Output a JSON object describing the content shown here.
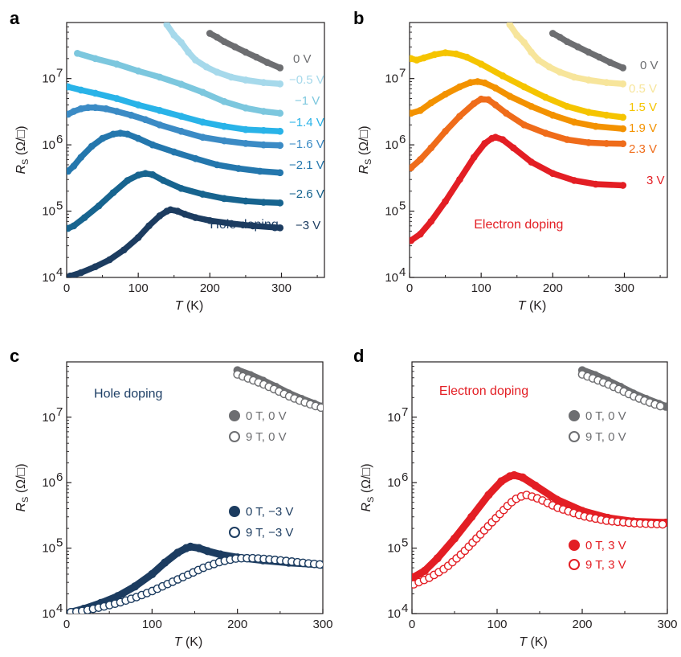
{
  "figure": {
    "panels": [
      "a",
      "b",
      "c",
      "d"
    ]
  },
  "chart_data": [
    {
      "panel": "a",
      "type": "scatter",
      "xlabel_italic": "T",
      "xlabel_unit": " (K)",
      "ylabel_main": "R",
      "ylabel_sub": "S",
      "ylabel_unit": " (Ω/□)",
      "xlim": [
        0,
        360
      ],
      "ylim": [
        10000,
        70000000
      ],
      "log_y": true,
      "xticks": [
        0,
        100,
        200,
        300
      ],
      "yticks": [
        {
          "v": 10000,
          "t": "10"
        },
        {
          "v": 100000,
          "t": "10"
        },
        {
          "v": 1000000,
          "t": "10"
        },
        {
          "v": 10000000,
          "t": "10"
        }
      ],
      "ytick_exps": [
        "4",
        "5",
        "6",
        "7"
      ],
      "annotation": {
        "text": "Hole doping",
        "color": "#1e3f66",
        "x": 200,
        "y": 55000
      },
      "series": [
        {
          "name": "0 V",
          "color": "#6d6e71",
          "x": [
            200,
            210,
            220,
            235,
            250,
            265,
            280,
            298
          ],
          "y": [
            48000000,
            42000000,
            36000000,
            30000000,
            25000000,
            21000000,
            17500000,
            14500000
          ]
        },
        {
          "name": "−0.5 V",
          "color": "#a6d9eb",
          "x": [
            140,
            150,
            160,
            170,
            180,
            195,
            210,
            230,
            250,
            275,
            298
          ],
          "y": [
            65000000,
            45000000,
            35000000,
            25000000,
            19000000,
            15000000,
            12500000,
            10500000,
            9500000,
            8700000,
            8300000
          ]
        },
        {
          "name": "−1 V",
          "color": "#7cc7de",
          "x": [
            15,
            40,
            70,
            100,
            130,
            160,
            190,
            220,
            250,
            275,
            298
          ],
          "y": [
            24000000,
            20000000,
            16500000,
            13000000,
            10500000,
            8200000,
            6200000,
            4500000,
            3600000,
            3200000,
            3000000
          ]
        },
        {
          "name": "−1.4 V",
          "color": "#29b3e8",
          "x": [
            2,
            20,
            40,
            70,
            100,
            130,
            160,
            190,
            220,
            250,
            275,
            298
          ],
          "y": [
            7500000,
            6700000,
            6000000,
            5000000,
            4000000,
            3300000,
            2700000,
            2200000,
            1900000,
            1700000,
            1650000,
            1600000
          ]
        },
        {
          "name": "−1.6 V",
          "color": "#3b8bc5",
          "x": [
            2,
            10,
            20,
            30,
            40,
            55,
            70,
            90,
            110,
            130,
            160,
            190,
            220,
            250,
            275,
            298
          ],
          "y": [
            2900000,
            3200000,
            3500000,
            3650000,
            3650000,
            3500000,
            3200000,
            2800000,
            2400000,
            2000000,
            1600000,
            1300000,
            1150000,
            1050000,
            1000000,
            980000
          ]
        },
        {
          "name": "−2.1 V",
          "color": "#2477ad",
          "x": [
            2,
            10,
            20,
            35,
            50,
            65,
            75,
            85,
            100,
            120,
            150,
            180,
            210,
            240,
            270,
            298
          ],
          "y": [
            400000,
            480000,
            650000,
            950000,
            1250000,
            1450000,
            1500000,
            1450000,
            1250000,
            1000000,
            780000,
            620000,
            500000,
            440000,
            400000,
            380000
          ]
        },
        {
          "name": "−2.6 V",
          "color": "#17648f",
          "x": [
            2,
            10,
            25,
            45,
            65,
            85,
            100,
            110,
            120,
            135,
            160,
            190,
            220,
            250,
            275,
            298
          ],
          "y": [
            55000,
            60000,
            80000,
            120000,
            190000,
            290000,
            350000,
            370000,
            355000,
            290000,
            220000,
            180000,
            155000,
            142000,
            136000,
            133000
          ]
        },
        {
          "name": "−3 V",
          "color": "#1c3c60",
          "x": [
            5,
            20,
            40,
            60,
            80,
            100,
            115,
            130,
            140,
            145,
            155,
            165,
            180,
            200,
            230,
            260,
            298
          ],
          "y": [
            10500,
            11800,
            14500,
            18500,
            26000,
            40000,
            60000,
            85000,
            100000,
            105000,
            100000,
            90000,
            80000,
            72000,
            65000,
            60000,
            56000
          ]
        }
      ]
    },
    {
      "panel": "b",
      "type": "scatter",
      "xlabel_italic": "T",
      "xlabel_unit": " (K)",
      "ylabel_main": "R",
      "ylabel_sub": "S",
      "ylabel_unit": " (Ω/□)",
      "xlim": [
        0,
        360
      ],
      "ylim": [
        10000,
        70000000
      ],
      "log_y": true,
      "xticks": [
        0,
        100,
        200,
        300
      ],
      "yticks": [
        {
          "v": 10000,
          "t": "10"
        },
        {
          "v": 100000,
          "t": "10"
        },
        {
          "v": 1000000,
          "t": "10"
        },
        {
          "v": 10000000,
          "t": "10"
        }
      ],
      "ytick_exps": [
        "4",
        "5",
        "6",
        "7"
      ],
      "annotation": {
        "text": "Electron doping",
        "color": "#e31e24",
        "x": 90,
        "y": 55000
      },
      "series": [
        {
          "name": "0 V",
          "color": "#6d6e71",
          "x": [
            200,
            210,
            220,
            235,
            250,
            265,
            280,
            298
          ],
          "y": [
            48000000,
            42000000,
            36000000,
            30000000,
            25000000,
            21000000,
            17500000,
            14500000
          ]
        },
        {
          "name": "0.5 V",
          "color": "#f7e59b",
          "x": [
            140,
            150,
            160,
            170,
            180,
            195,
            210,
            230,
            250,
            275,
            298
          ],
          "y": [
            65000000,
            45000000,
            35000000,
            25000000,
            19000000,
            15000000,
            12500000,
            10500000,
            9500000,
            8700000,
            8300000
          ]
        },
        {
          "name": "1.5 V",
          "color": "#f5c400",
          "x": [
            2,
            10,
            20,
            35,
            50,
            65,
            80,
            100,
            130,
            160,
            190,
            220,
            250,
            275,
            298
          ],
          "y": [
            20000000,
            19000000,
            20500000,
            23000000,
            24500000,
            23500000,
            21000000,
            16500000,
            11000000,
            7500000,
            5200000,
            3800000,
            3100000,
            2800000,
            2600000
          ]
        },
        {
          "name": "1.9 V",
          "color": "#f39200",
          "x": [
            2,
            15,
            30,
            50,
            70,
            85,
            95,
            105,
            120,
            140,
            170,
            200,
            230,
            260,
            298
          ],
          "y": [
            3000000,
            3300000,
            4300000,
            5800000,
            7500000,
            8700000,
            9000000,
            8600000,
            7200000,
            5400000,
            3800000,
            2800000,
            2200000,
            1900000,
            1750000
          ]
        },
        {
          "name": "2.3 V",
          "color": "#ef6c1a",
          "x": [
            2,
            15,
            30,
            50,
            70,
            90,
            100,
            110,
            120,
            135,
            160,
            190,
            220,
            250,
            275,
            298
          ],
          "y": [
            450000,
            600000,
            900000,
            1600000,
            2700000,
            4200000,
            4900000,
            4800000,
            4000000,
            3000000,
            2000000,
            1500000,
            1200000,
            1080000,
            1050000,
            1040000
          ]
        },
        {
          "name": "3 V",
          "color": "#e31e24",
          "x": [
            2,
            15,
            30,
            50,
            70,
            90,
            105,
            115,
            120,
            130,
            145,
            170,
            200,
            230,
            260,
            298
          ],
          "y": [
            36000,
            45000,
            70000,
            140000,
            300000,
            650000,
            1050000,
            1250000,
            1300000,
            1200000,
            900000,
            550000,
            370000,
            290000,
            255000,
            245000
          ]
        }
      ]
    },
    {
      "panel": "c",
      "type": "scatter",
      "xlabel_italic": "T",
      "xlabel_unit": " (K)",
      "ylabel_main": "R",
      "ylabel_sub": "S",
      "ylabel_unit": " (Ω/□)",
      "xlim": [
        0,
        300
      ],
      "ylim": [
        10000,
        70000000
      ],
      "log_y": true,
      "xticks": [
        0,
        100,
        200,
        300
      ],
      "yticks": [
        {
          "v": 10000,
          "t": "10"
        },
        {
          "v": 100000,
          "t": "10"
        },
        {
          "v": 1000000,
          "t": "10"
        },
        {
          "v": 10000000,
          "t": "10"
        }
      ],
      "ytick_exps": [
        "4",
        "5",
        "6",
        "7"
      ],
      "annotation": {
        "text": "Hole doping",
        "color": "#1e3f66",
        "x": 32,
        "y": 20000000
      },
      "series": [
        {
          "name": "0 T, 0 V",
          "color": "#6d6e71",
          "filled": true,
          "x": [
            200,
            215,
            230,
            245,
            260,
            275,
            290,
            298
          ],
          "y": [
            52000000,
            44000000,
            36000000,
            29000000,
            23000000,
            19000000,
            16000000,
            14500000
          ]
        },
        {
          "name": "9 T, 0 V",
          "color": "#6d6e71",
          "filled": false,
          "x": [
            200,
            215,
            230,
            245,
            260,
            275,
            290,
            298
          ],
          "y": [
            45000000,
            38000000,
            32000000,
            26000000,
            21000000,
            17500000,
            15000000,
            14000000
          ]
        },
        {
          "name": "0 T, −3 V",
          "color": "#1c3c60",
          "filled": true,
          "x": [
            5,
            20,
            40,
            60,
            80,
            100,
            115,
            130,
            140,
            145,
            155,
            165,
            180,
            200,
            230,
            260,
            298
          ],
          "y": [
            10500,
            11800,
            14500,
            18500,
            26000,
            40000,
            60000,
            85000,
            100000,
            105000,
            100000,
            90000,
            80000,
            72000,
            65000,
            60000,
            56000
          ]
        },
        {
          "name": "9 T, −3 V",
          "color": "#1c3c60",
          "filled": false,
          "x": [
            5,
            20,
            40,
            60,
            80,
            100,
            120,
            140,
            160,
            180,
            200,
            220,
            240,
            260,
            280,
            298
          ],
          "y": [
            10500,
            11000,
            12500,
            14500,
            17500,
            22000,
            29000,
            38000,
            50000,
            62000,
            70000,
            70000,
            67000,
            63000,
            59000,
            56000
          ]
        }
      ],
      "legend": [
        {
          "text": "0 T, 0 V",
          "color": "#6d6e71",
          "filled": true
        },
        {
          "text": "9 T, 0 V",
          "color": "#6d6e71",
          "filled": false
        },
        {
          "text": "0 T, −3 V",
          "color": "#1c3c60",
          "filled": true
        },
        {
          "text": "9 T, −3 V",
          "color": "#1c3c60",
          "filled": false
        }
      ]
    },
    {
      "panel": "d",
      "type": "scatter",
      "xlabel_italic": "T",
      "xlabel_unit": " (K)",
      "ylabel_main": "R",
      "ylabel_sub": "S",
      "ylabel_unit": " (Ω/□)",
      "xlim": [
        0,
        300
      ],
      "ylim": [
        10000,
        70000000
      ],
      "log_y": true,
      "xticks": [
        0,
        100,
        200,
        300
      ],
      "yticks": [
        {
          "v": 10000,
          "t": "10"
        },
        {
          "v": 100000,
          "t": "10"
        },
        {
          "v": 1000000,
          "t": "10"
        },
        {
          "v": 10000000,
          "t": "10"
        }
      ],
      "ytick_exps": [
        "4",
        "5",
        "6",
        "7"
      ],
      "annotation": {
        "text": "Electron doping",
        "color": "#e31e24",
        "x": 32,
        "y": 22000000
      },
      "series": [
        {
          "name": "0 T, 0 V",
          "color": "#6d6e71",
          "filled": true,
          "x": [
            200,
            215,
            230,
            245,
            260,
            275,
            290,
            298
          ],
          "y": [
            52000000,
            44000000,
            36000000,
            29000000,
            23000000,
            19000000,
            16000000,
            14500000
          ]
        },
        {
          "name": "9 T, 0 V",
          "color": "#6d6e71",
          "filled": false,
          "x": [
            200,
            215,
            230,
            245,
            260,
            275,
            290,
            298
          ],
          "y": [
            45000000,
            38000000,
            32000000,
            26000000,
            21000000,
            17500000,
            15000000,
            14000000
          ]
        },
        {
          "name": "0 T, 3 V",
          "color": "#e31e24",
          "filled": true,
          "x": [
            2,
            15,
            30,
            50,
            70,
            90,
            105,
            115,
            120,
            130,
            145,
            170,
            200,
            230,
            260,
            298
          ],
          "y": [
            36000,
            45000,
            70000,
            140000,
            300000,
            650000,
            1050000,
            1250000,
            1300000,
            1200000,
            900000,
            550000,
            370000,
            290000,
            255000,
            245000
          ]
        },
        {
          "name": "9 T, 3 V",
          "color": "#e31e24",
          "filled": false,
          "x": [
            2,
            20,
            40,
            60,
            80,
            100,
            115,
            125,
            135,
            150,
            170,
            200,
            230,
            260,
            298
          ],
          "y": [
            28000,
            35000,
            50000,
            85000,
            160000,
            300000,
            480000,
            600000,
            650000,
            560000,
            420000,
            310000,
            260000,
            240000,
            230000
          ]
        }
      ],
      "legend": [
        {
          "text": "0 T, 0 V",
          "color": "#6d6e71",
          "filled": true
        },
        {
          "text": "9 T, 0 V",
          "color": "#6d6e71",
          "filled": false
        },
        {
          "text": "0 T, 3 V",
          "color": "#e31e24",
          "filled": true
        },
        {
          "text": "9 T, 3 V",
          "color": "#e31e24",
          "filled": false
        }
      ]
    }
  ]
}
